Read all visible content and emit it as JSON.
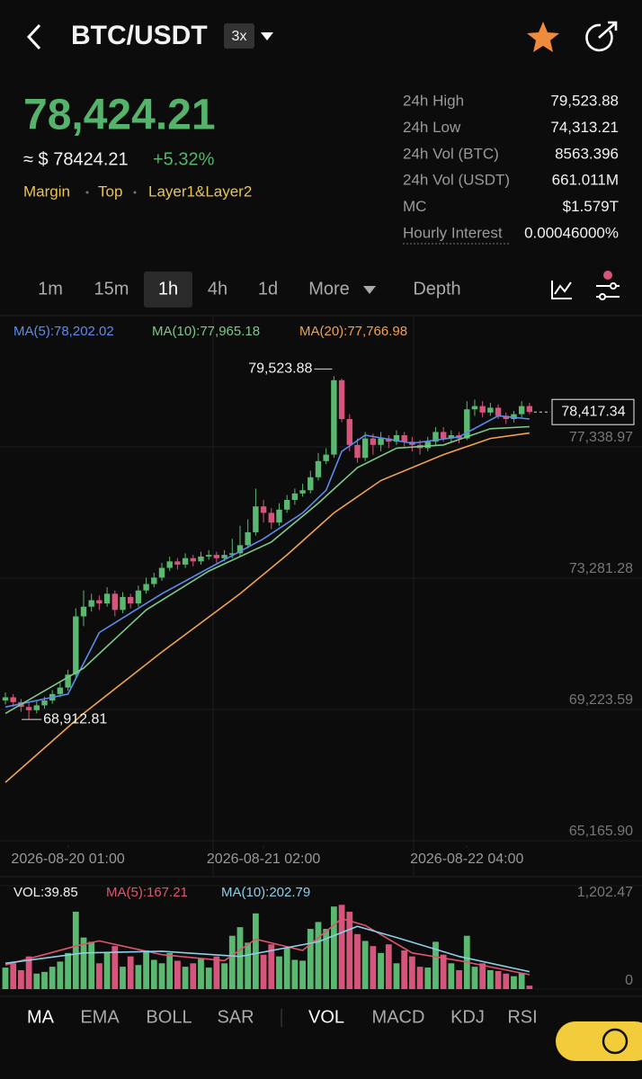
{
  "header": {
    "symbol": "BTC/USDT",
    "leverage": "3x"
  },
  "price": {
    "last": "78,424.21",
    "approx": "≈ $ 78424.21",
    "change": "+5.32%",
    "tags": [
      "Margin",
      "Top",
      "Layer1&Layer2"
    ]
  },
  "stats": [
    [
      "24h High",
      "79,523.88"
    ],
    [
      "24h Low",
      "74,313.21"
    ],
    [
      "24h Vol (BTC)",
      "8563.396"
    ],
    [
      "24h Vol (USDT)",
      "661.011M"
    ],
    [
      "MC",
      "$1.579T"
    ],
    [
      "Hourly Interest",
      "0.00046000%"
    ]
  ],
  "intervals": [
    "1m",
    "15m",
    "1h",
    "4h",
    "1d",
    "More",
    "Depth"
  ],
  "chart": {
    "type": "candlestick",
    "up_color": "#5bb870",
    "down_color": "#d6557b",
    "xlim": [
      -0.69,
      68.28
    ],
    "ylim": [
      65027,
      81369
    ],
    "yticks": [
      {
        "value": 77338.97,
        "label": "77,338.97"
      },
      {
        "value": 73281.28,
        "label": "73,281.28"
      },
      {
        "value": 69223.59,
        "label": "69,223.59"
      },
      {
        "value": 65165.9,
        "label": "65,165.90"
      }
    ],
    "xticks": [
      {
        "value": 8,
        "label": "2026-08-20 01:00"
      },
      {
        "value": 33,
        "label": "2026-08-21 02:00"
      },
      {
        "value": 59,
        "label": "2026-08-22 04:00"
      }
    ],
    "candles": [
      [
        69500,
        69750,
        69380,
        69600
      ],
      [
        69600,
        69700,
        69300,
        69450
      ],
      [
        69450,
        69550,
        69150,
        69300
      ],
      [
        69300,
        69420,
        68912.81,
        69200
      ],
      [
        69200,
        69480,
        69100,
        69350
      ],
      [
        69350,
        69620,
        69250,
        69500
      ],
      [
        69500,
        69820,
        69400,
        69700
      ],
      [
        69700,
        70050,
        69600,
        69900
      ],
      [
        69900,
        70450,
        69800,
        70300
      ],
      [
        70300,
        72350,
        70200,
        72100
      ],
      [
        72100,
        72900,
        71800,
        72400
      ],
      [
        72400,
        72800,
        72250,
        72600
      ],
      [
        72600,
        72750,
        72300,
        72500
      ],
      [
        72500,
        73000,
        72400,
        72800
      ],
      [
        72800,
        72900,
        72100,
        72300
      ],
      [
        72300,
        72850,
        72200,
        72700
      ],
      [
        72700,
        72800,
        72350,
        72500
      ],
      [
        72500,
        73050,
        72400,
        72900
      ],
      [
        72900,
        73300,
        72800,
        73100
      ],
      [
        73100,
        73450,
        73000,
        73300
      ],
      [
        73300,
        73750,
        73200,
        73600
      ],
      [
        73600,
        73950,
        73500,
        73800
      ],
      [
        73800,
        73900,
        73550,
        73700
      ],
      [
        73700,
        74050,
        73600,
        73900
      ],
      [
        73900,
        74000,
        73650,
        73800
      ],
      [
        73800,
        74100,
        73700,
        73950
      ],
      [
        73950,
        74150,
        73850,
        74000
      ],
      [
        74000,
        74100,
        73750,
        73900
      ],
      [
        73900,
        74150,
        73800,
        74000
      ],
      [
        74000,
        74500,
        73900,
        74050
      ],
      [
        74050,
        74900,
        73950,
        74300
      ],
      [
        74300,
        75100,
        74200,
        74700
      ],
      [
        74700,
        76050,
        74600,
        75500
      ],
      [
        75500,
        75700,
        75000,
        75300
      ],
      [
        75300,
        75450,
        74800,
        75000
      ],
      [
        75000,
        75600,
        74900,
        75400
      ],
      [
        75400,
        75850,
        75300,
        75700
      ],
      [
        75700,
        76050,
        75550,
        75900
      ],
      [
        75900,
        76200,
        75800,
        76000
      ],
      [
        76000,
        76600,
        75900,
        76400
      ],
      [
        76400,
        77150,
        76300,
        76900
      ],
      [
        76900,
        77300,
        76800,
        77100
      ],
      [
        77100,
        79523.88,
        77000,
        79400
      ],
      [
        79400,
        79450,
        78100,
        78200
      ],
      [
        78200,
        78350,
        77200,
        77400
      ],
      [
        77400,
        77600,
        76850,
        77000
      ],
      [
        77000,
        77800,
        76900,
        77600
      ],
      [
        77600,
        77750,
        77100,
        77400
      ],
      [
        77400,
        77800,
        77200,
        77600
      ],
      [
        77600,
        77700,
        77300,
        77500
      ],
      [
        77500,
        77850,
        77400,
        77700
      ],
      [
        77700,
        77800,
        77350,
        77500
      ],
      [
        77500,
        77650,
        77200,
        77400
      ],
      [
        77400,
        77550,
        77100,
        77300
      ],
      [
        77300,
        77650,
        77200,
        77500
      ],
      [
        77500,
        77950,
        77400,
        77800
      ],
      [
        77800,
        77950,
        77500,
        77600
      ],
      [
        77600,
        77850,
        77500,
        77700
      ],
      [
        77700,
        77800,
        77450,
        77600
      ],
      [
        77600,
        78750,
        77550,
        78500
      ],
      [
        78500,
        78800,
        78300,
        78600
      ],
      [
        78600,
        78750,
        78250,
        78400
      ],
      [
        78400,
        78700,
        78300,
        78550
      ],
      [
        78550,
        78650,
        78200,
        78300
      ],
      [
        78300,
        78400,
        78050,
        78200
      ],
      [
        78200,
        78450,
        78100,
        78350
      ],
      [
        78350,
        78750,
        78250,
        78600
      ],
      [
        78600,
        78700,
        78350,
        78417.34
      ]
    ],
    "series": [
      {
        "name": "MA(5)",
        "legend": "MA(5):78,202.02",
        "color": "#5b8def",
        "x": [
          0,
          8,
          12,
          20,
          28,
          33,
          38,
          41,
          43,
          46,
          52,
          58,
          63,
          67
        ],
        "values": [
          69300,
          69700,
          71600,
          72800,
          73850,
          74500,
          75300,
          76000,
          77200,
          77700,
          77450,
          77650,
          78300,
          78202.02
        ]
      },
      {
        "name": "MA(10)",
        "legend": "MA(10):77,965.18",
        "color": "#7cc98a",
        "x": [
          0,
          10,
          18,
          26,
          34,
          40,
          45,
          50,
          56,
          62,
          67
        ],
        "values": [
          69100,
          70500,
          72300,
          73500,
          74400,
          75600,
          76700,
          77300,
          77400,
          77900,
          77965.18
        ]
      },
      {
        "name": "MA(20)",
        "legend": "MA(20):77,766.98",
        "color": "#f0a24e",
        "x": [
          0,
          10,
          20,
          30,
          36,
          42,
          48,
          56,
          62,
          67
        ],
        "values": [
          66970,
          69100,
          71000,
          72800,
          74000,
          75300,
          76300,
          77100,
          77600,
          77766.98
        ]
      }
    ],
    "high": {
      "index": 42,
      "label": "79,523.88"
    },
    "low": {
      "index": 3,
      "label": "68,912.81"
    },
    "last_label": "78,417.34"
  },
  "volume": {
    "legend": "VOL:39.85",
    "ylim": [
      0,
      1202.47
    ],
    "yticks": [
      {
        "value": 1202.47,
        "label": "1,202.47"
      },
      0
    ],
    "values": [
      250,
      300,
      220,
      380,
      180,
      200,
      260,
      320,
      420,
      900,
      600,
      550,
      300,
      420,
      500,
      260,
      380,
      280,
      450,
      340,
      300,
      420,
      330,
      260,
      300,
      350,
      250,
      380,
      300,
      620,
      720,
      540,
      880,
      400,
      520,
      380,
      480,
      340,
      330,
      700,
      780,
      700,
      960,
      980,
      900,
      640,
      560,
      500,
      420,
      520,
      300,
      450,
      380,
      260,
      250,
      550,
      400,
      300,
      220,
      620,
      260,
      300,
      220,
      210,
      180,
      150,
      190,
      39.85
    ],
    "series": [
      {
        "name": "MA(5)",
        "legend": "MA(5):167.21",
        "color": "#e0546e",
        "x": [
          0,
          9,
          12,
          20,
          28,
          32,
          38,
          43,
          46,
          52,
          58,
          67
        ],
        "values": [
          280,
          500,
          560,
          400,
          330,
          580,
          450,
          820,
          740,
          420,
          330,
          167.21
        ]
      },
      {
        "name": "MA(10)",
        "legend": "MA(10):202.79",
        "color": "#8ccfe8",
        "x": [
          0,
          10,
          20,
          30,
          40,
          45,
          50,
          58,
          67
        ],
        "values": [
          300,
          420,
          440,
          380,
          550,
          730,
          600,
          380,
          202.79
        ]
      }
    ]
  },
  "indicators": {
    "main": [
      "MA",
      "EMA",
      "BOLL",
      "SAR"
    ],
    "sub": [
      "VOL",
      "MACD",
      "KDJ",
      "RSI"
    ]
  }
}
